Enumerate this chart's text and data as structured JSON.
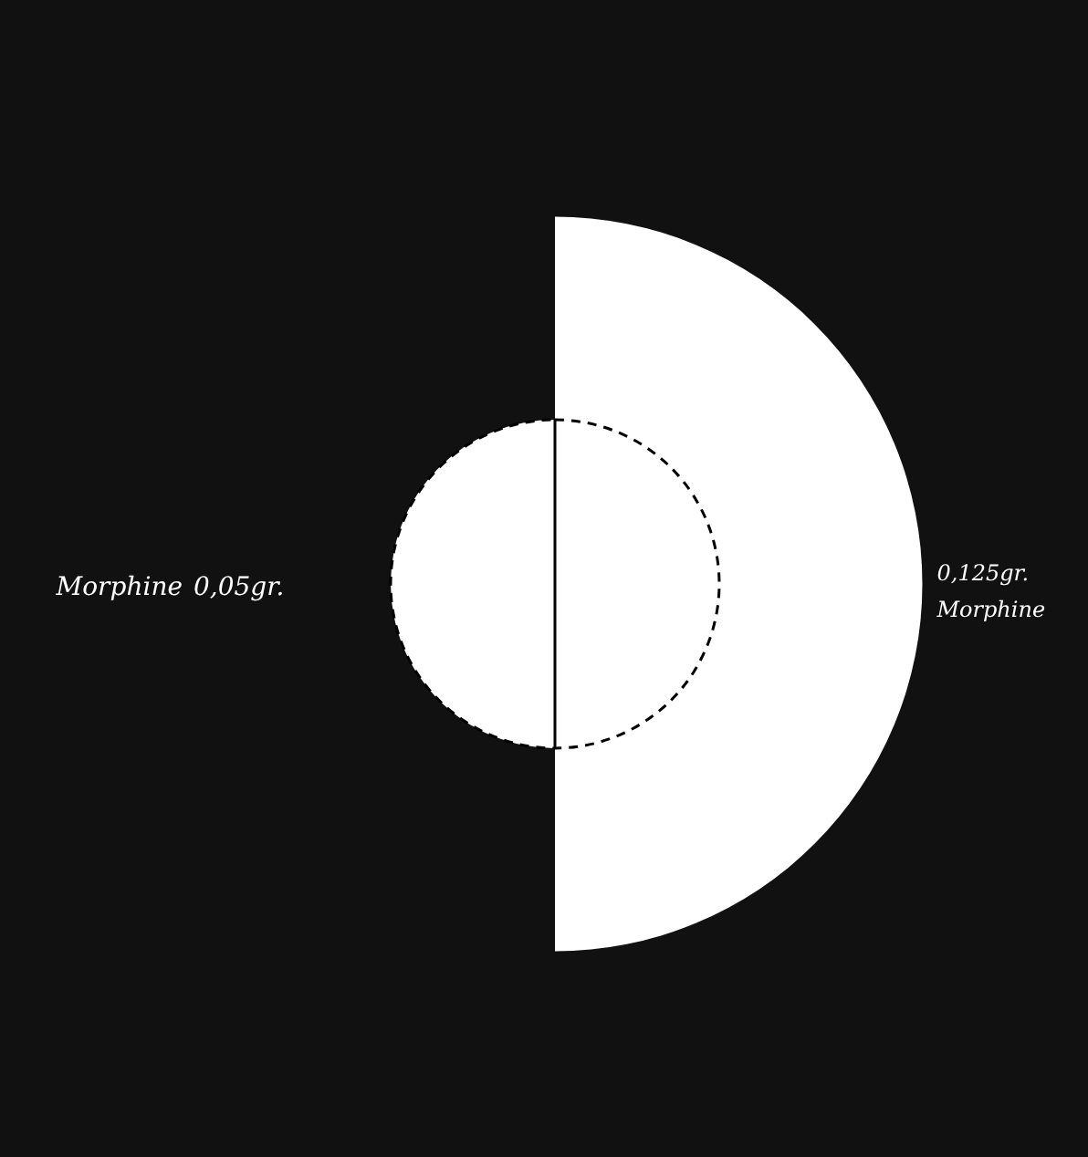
{
  "chart_data": {
    "type": "other",
    "categories": [
      "Morphine",
      "Morphine"
    ],
    "values": [
      0.05,
      0.125
    ],
    "value_labels": [
      "0,05gr.",
      "0,125gr."
    ],
    "colors": [
      "#ffffff",
      "#ffffff"
    ]
  }
}
